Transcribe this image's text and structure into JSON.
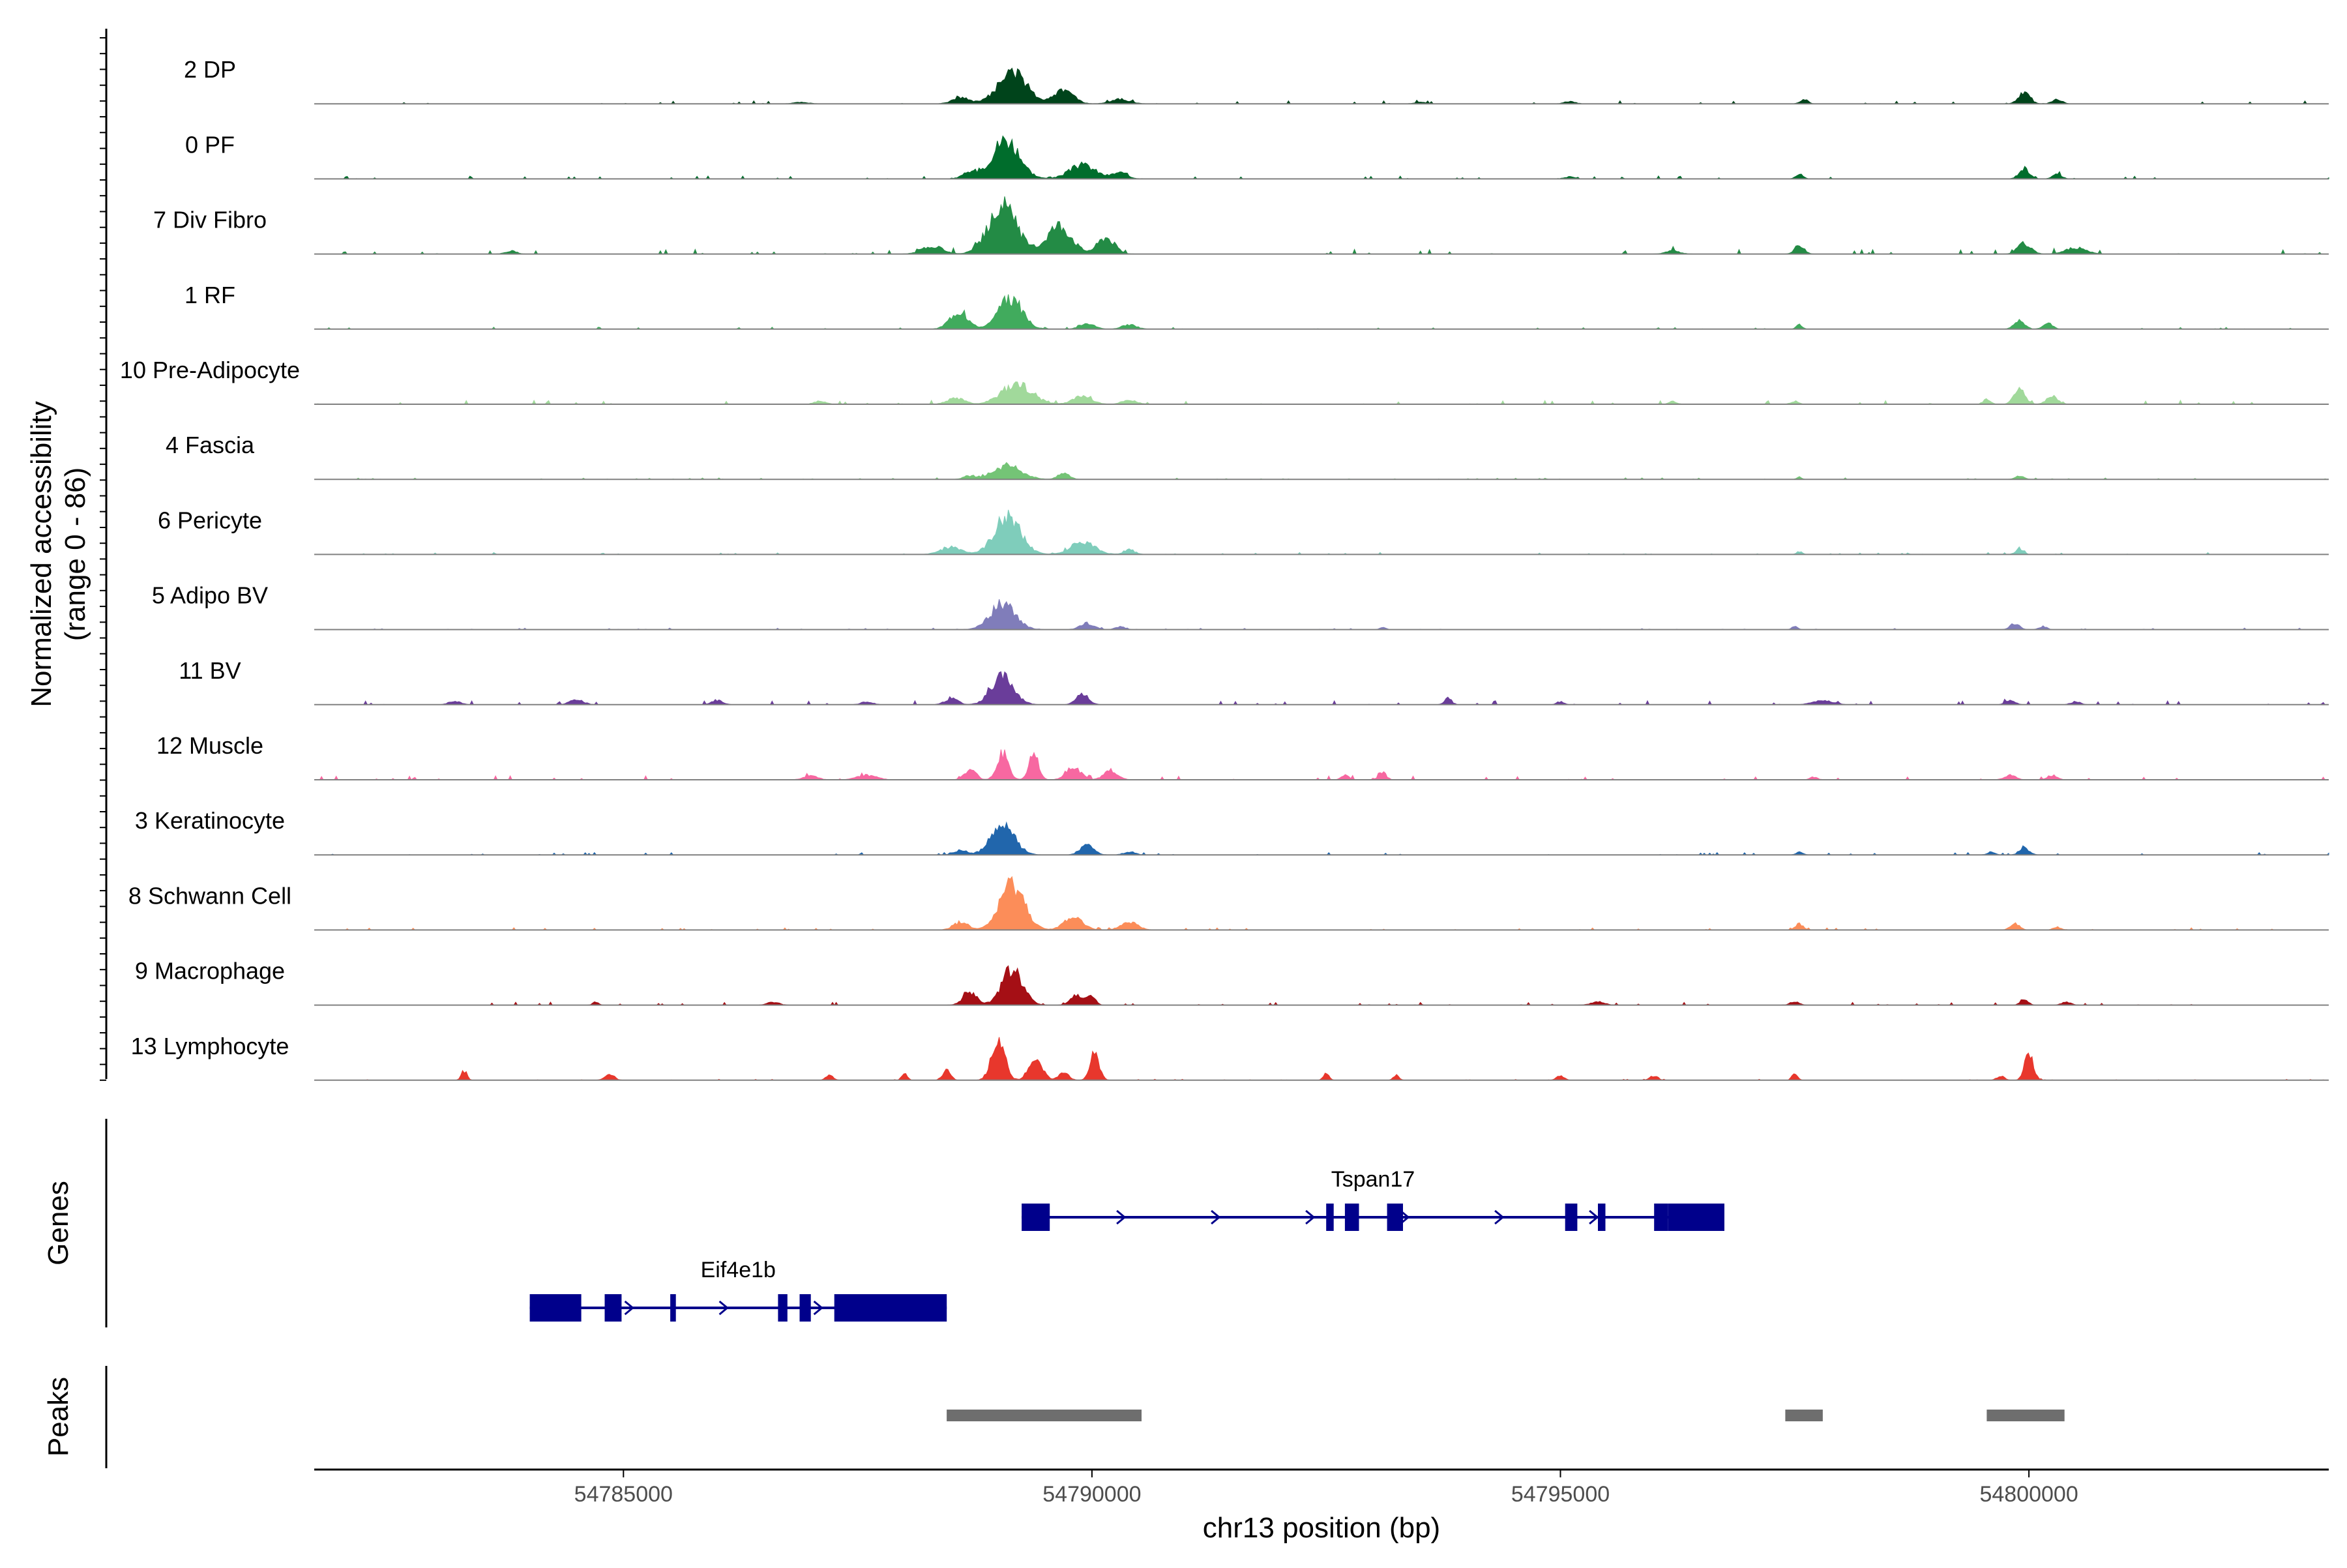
{
  "chart_data": {
    "type": "area",
    "title": "",
    "ylabel_line1": "Normalized accessibility",
    "ylabel_line2": "(range 0 - 86)",
    "xlabel": "chr13 position (bp)",
    "xlim": [
      54781700,
      54803200
    ],
    "ylim": [
      0,
      86
    ],
    "x_ticks": [
      54785000,
      54790000,
      54795000,
      54800000
    ],
    "x_tick_labels": [
      "54785000",
      "54790000",
      "54795000",
      "54800000"
    ],
    "tracks": [
      {
        "name": "2 DP",
        "color": "#00441b",
        "peaks": [
          [
            54789150,
            310,
            40
          ],
          [
            54789700,
            200,
            18
          ],
          [
            54788600,
            180,
            8
          ],
          [
            54790300,
            200,
            6
          ],
          [
            54797600,
            80,
            6
          ],
          [
            54799950,
            120,
            14
          ],
          [
            54800300,
            100,
            6
          ],
          [
            54795100,
            120,
            3
          ],
          [
            54786900,
            150,
            2
          ],
          [
            54793500,
            120,
            2
          ]
        ],
        "noise": 1.5
      },
      {
        "name": "0 PF",
        "color": "#006d2c",
        "peaks": [
          [
            54789080,
            290,
            52
          ],
          [
            54789900,
            280,
            18
          ],
          [
            54788700,
            160,
            8
          ],
          [
            54790300,
            160,
            8
          ],
          [
            54797550,
            80,
            6
          ],
          [
            54799950,
            110,
            14
          ],
          [
            54800300,
            100,
            6
          ],
          [
            54795100,
            100,
            3
          ]
        ],
        "noise": 1.5
      },
      {
        "name": "7 Div Fibro",
        "color": "#238b45",
        "peaks": [
          [
            54789050,
            300,
            62
          ],
          [
            54789650,
            260,
            38
          ],
          [
            54788300,
            220,
            10
          ],
          [
            54790150,
            180,
            22
          ],
          [
            54797550,
            100,
            12
          ],
          [
            54799950,
            140,
            14
          ],
          [
            54800500,
            220,
            8
          ],
          [
            54796200,
            150,
            4
          ],
          [
            54783800,
            120,
            4
          ]
        ],
        "noise": 2.5
      },
      {
        "name": "1 RF",
        "color": "#41ab5d",
        "peaks": [
          [
            54789130,
            250,
            40
          ],
          [
            54788580,
            190,
            24
          ],
          [
            54789950,
            150,
            8
          ],
          [
            54790400,
            150,
            6
          ],
          [
            54797550,
            60,
            6
          ],
          [
            54799900,
            110,
            12
          ],
          [
            54800200,
            100,
            8
          ]
        ],
        "noise": 1.0
      },
      {
        "name": "10 Pre-Adipocyte",
        "color": "#a1d99b",
        "peaks": [
          [
            54789200,
            320,
            26
          ],
          [
            54788550,
            180,
            8
          ],
          [
            54789900,
            200,
            10
          ],
          [
            54790400,
            150,
            6
          ],
          [
            54799900,
            120,
            18
          ],
          [
            54800250,
            120,
            10
          ],
          [
            54799550,
            80,
            6
          ],
          [
            54797500,
            80,
            4
          ],
          [
            54787100,
            120,
            4
          ],
          [
            54796200,
            80,
            4
          ]
        ],
        "noise": 2.0
      },
      {
        "name": "4 Fascia",
        "color": "#74c476",
        "peaks": [
          [
            54789100,
            300,
            18
          ],
          [
            54789700,
            120,
            8
          ],
          [
            54788700,
            140,
            4
          ],
          [
            54799900,
            100,
            4
          ],
          [
            54797550,
            50,
            3
          ]
        ],
        "noise": 0.8
      },
      {
        "name": "6 Pericyte",
        "color": "#7fcdbb",
        "peaks": [
          [
            54789100,
            280,
            48
          ],
          [
            54789900,
            260,
            16
          ],
          [
            54788500,
            220,
            10
          ],
          [
            54790400,
            120,
            6
          ],
          [
            54799900,
            80,
            8
          ],
          [
            54797550,
            60,
            4
          ]
        ],
        "noise": 1.0
      },
      {
        "name": "5 Adipo BV",
        "color": "#807dba",
        "peaks": [
          [
            54789050,
            260,
            34
          ],
          [
            54789950,
            150,
            8
          ],
          [
            54790300,
            100,
            4
          ],
          [
            54799850,
            100,
            8
          ],
          [
            54800150,
            80,
            4
          ],
          [
            54797500,
            60,
            4
          ],
          [
            54793100,
            60,
            3
          ]
        ],
        "noise": 0.8
      },
      {
        "name": "11 BV",
        "color": "#6a3d9a",
        "peaks": [
          [
            54789050,
            240,
            36
          ],
          [
            54789900,
            130,
            14
          ],
          [
            54788500,
            140,
            8
          ],
          [
            54786000,
            120,
            6
          ],
          [
            54784500,
            150,
            6
          ],
          [
            54783200,
            120,
            5
          ],
          [
            54795000,
            80,
            4
          ],
          [
            54793800,
            80,
            8
          ],
          [
            54797800,
            200,
            6
          ],
          [
            54799800,
            100,
            6
          ],
          [
            54800500,
            100,
            4
          ],
          [
            54787600,
            120,
            4
          ]
        ],
        "noise": 2.0
      },
      {
        "name": "12 Muscle",
        "color": "#f768a1",
        "peaks": [
          [
            54789050,
            120,
            36
          ],
          [
            54789380,
            100,
            34
          ],
          [
            54789800,
            150,
            18
          ],
          [
            54790200,
            150,
            12
          ],
          [
            54788700,
            120,
            14
          ],
          [
            54787600,
            200,
            6
          ],
          [
            54787000,
            150,
            5
          ],
          [
            54793100,
            80,
            10
          ],
          [
            54792700,
            80,
            6
          ],
          [
            54799800,
            120,
            6
          ],
          [
            54800250,
            100,
            6
          ],
          [
            54797700,
            80,
            4
          ]
        ],
        "noise": 2.0
      },
      {
        "name": "3 Keratinocyte",
        "color": "#2166ac",
        "peaks": [
          [
            54789050,
            250,
            38
          ],
          [
            54789950,
            140,
            14
          ],
          [
            54788600,
            140,
            6
          ],
          [
            54790400,
            120,
            4
          ],
          [
            54799950,
            100,
            10
          ],
          [
            54799600,
            80,
            4
          ],
          [
            54797550,
            70,
            4
          ]
        ],
        "noise": 1.2
      },
      {
        "name": "8 Schwann Cell",
        "color": "#fc8d59",
        "peaks": [
          [
            54789150,
            260,
            58
          ],
          [
            54789800,
            200,
            16
          ],
          [
            54788600,
            160,
            10
          ],
          [
            54790400,
            180,
            10
          ],
          [
            54797550,
            80,
            8
          ],
          [
            54799850,
            100,
            8
          ],
          [
            54800300,
            80,
            4
          ]
        ],
        "noise": 1.2
      },
      {
        "name": "9 Macrophage",
        "color": "#a50f15",
        "peaks": [
          [
            54789150,
            220,
            46
          ],
          [
            54788700,
            150,
            16
          ],
          [
            54789850,
            140,
            14
          ],
          [
            54790000,
            80,
            10
          ],
          [
            54784700,
            60,
            4
          ],
          [
            54786600,
            120,
            4
          ],
          [
            54795400,
            150,
            4
          ],
          [
            54797500,
            100,
            4
          ],
          [
            54799950,
            80,
            8
          ],
          [
            54800400,
            100,
            4
          ]
        ],
        "noise": 1.5
      },
      {
        "name": "13 Lymphocyte",
        "color": "#e8372c",
        "peaks": [
          [
            54789000,
            140,
            52
          ],
          [
            54789400,
            140,
            30
          ],
          [
            54788450,
            80,
            14
          ],
          [
            54790030,
            100,
            34
          ],
          [
            54789700,
            100,
            12
          ],
          [
            54783300,
            60,
            12
          ],
          [
            54784850,
            100,
            8
          ],
          [
            54787200,
            80,
            6
          ],
          [
            54788000,
            60,
            8
          ],
          [
            54792500,
            60,
            8
          ],
          [
            54793250,
            60,
            6
          ],
          [
            54797500,
            60,
            8
          ],
          [
            54800000,
            90,
            36
          ],
          [
            54799700,
            80,
            6
          ],
          [
            54795000,
            80,
            6
          ],
          [
            54796000,
            80,
            6
          ]
        ],
        "noise": 0.5
      }
    ],
    "genes": [
      {
        "name": "Tspan17",
        "strand": "+",
        "start": 54789250,
        "end": 54796750,
        "exons": [
          [
            54789250,
            54789550
          ],
          [
            54792500,
            54792580
          ],
          [
            54792700,
            54792850
          ],
          [
            54793150,
            54793320
          ],
          [
            54795050,
            54795180
          ],
          [
            54795400,
            54795480
          ],
          [
            54796000,
            54796150
          ],
          [
            54796150,
            54796750
          ]
        ]
      },
      {
        "name": "Eif4e1b",
        "strand": "+",
        "start": 54784000,
        "end": 54788450,
        "exons": [
          [
            54784000,
            54784550
          ],
          [
            54784800,
            54784980
          ],
          [
            54785500,
            54785560
          ],
          [
            54786650,
            54786750
          ],
          [
            54786880,
            54787000
          ],
          [
            54787250,
            54788450
          ]
        ]
      }
    ],
    "peak_regions": [
      [
        54788450,
        54790530
      ],
      [
        54797400,
        54797800
      ],
      [
        54799550,
        54800380
      ]
    ],
    "panel_labels": {
      "genes": "Genes",
      "peaks": "Peaks"
    }
  },
  "colors": {
    "gene": "#00008b",
    "peak_region": "#6e6e6e",
    "axis": "#000000",
    "baseline": "#808080"
  }
}
